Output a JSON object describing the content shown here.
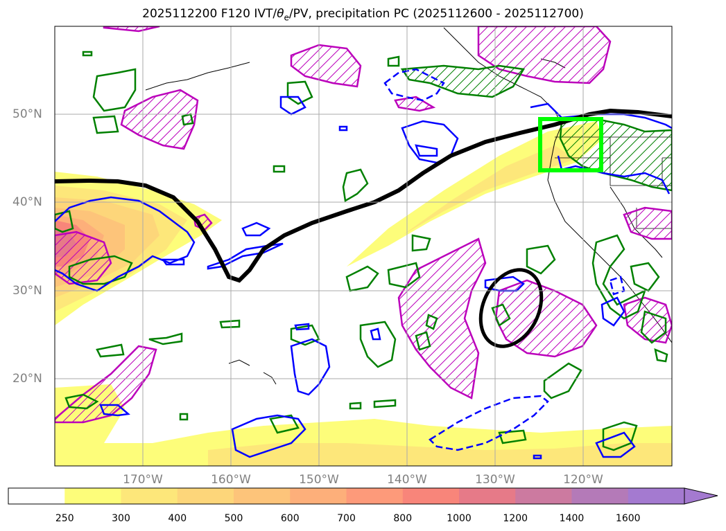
{
  "title": {
    "prefix": "2025112200 F120 IVT/",
    "theta": "θ",
    "sub": "e",
    "suffix": "/PV, precipitation PC (2025112600 - 2025112700)"
  },
  "lat_labels": [
    "50°N",
    "40°N",
    "30°N",
    "20°N"
  ],
  "lon_labels": [
    "170°W",
    "160°W",
    "150°W",
    "140°W",
    "130°W",
    "120°W"
  ],
  "colorbar": {
    "ticks": [
      "250",
      "300",
      "400",
      "500",
      "600",
      "700",
      "800",
      "1000",
      "1200",
      "1400",
      "1600"
    ],
    "colors": [
      "#ffffff",
      "#fdfd7a",
      "#fde77a",
      "#fdd67a",
      "#fdc47a",
      "#fdaf7a",
      "#fd9a7a",
      "#f8857a",
      "#e67a88",
      "#cc7aa0",
      "#b47ab8",
      "#a47ad0"
    ]
  },
  "colors": {
    "contour_green": "#008000",
    "contour_blue": "#0000ff",
    "contour_magenta": "#bb00bb",
    "highlight_box": "#00ff00",
    "pv_line": "#000000"
  }
}
